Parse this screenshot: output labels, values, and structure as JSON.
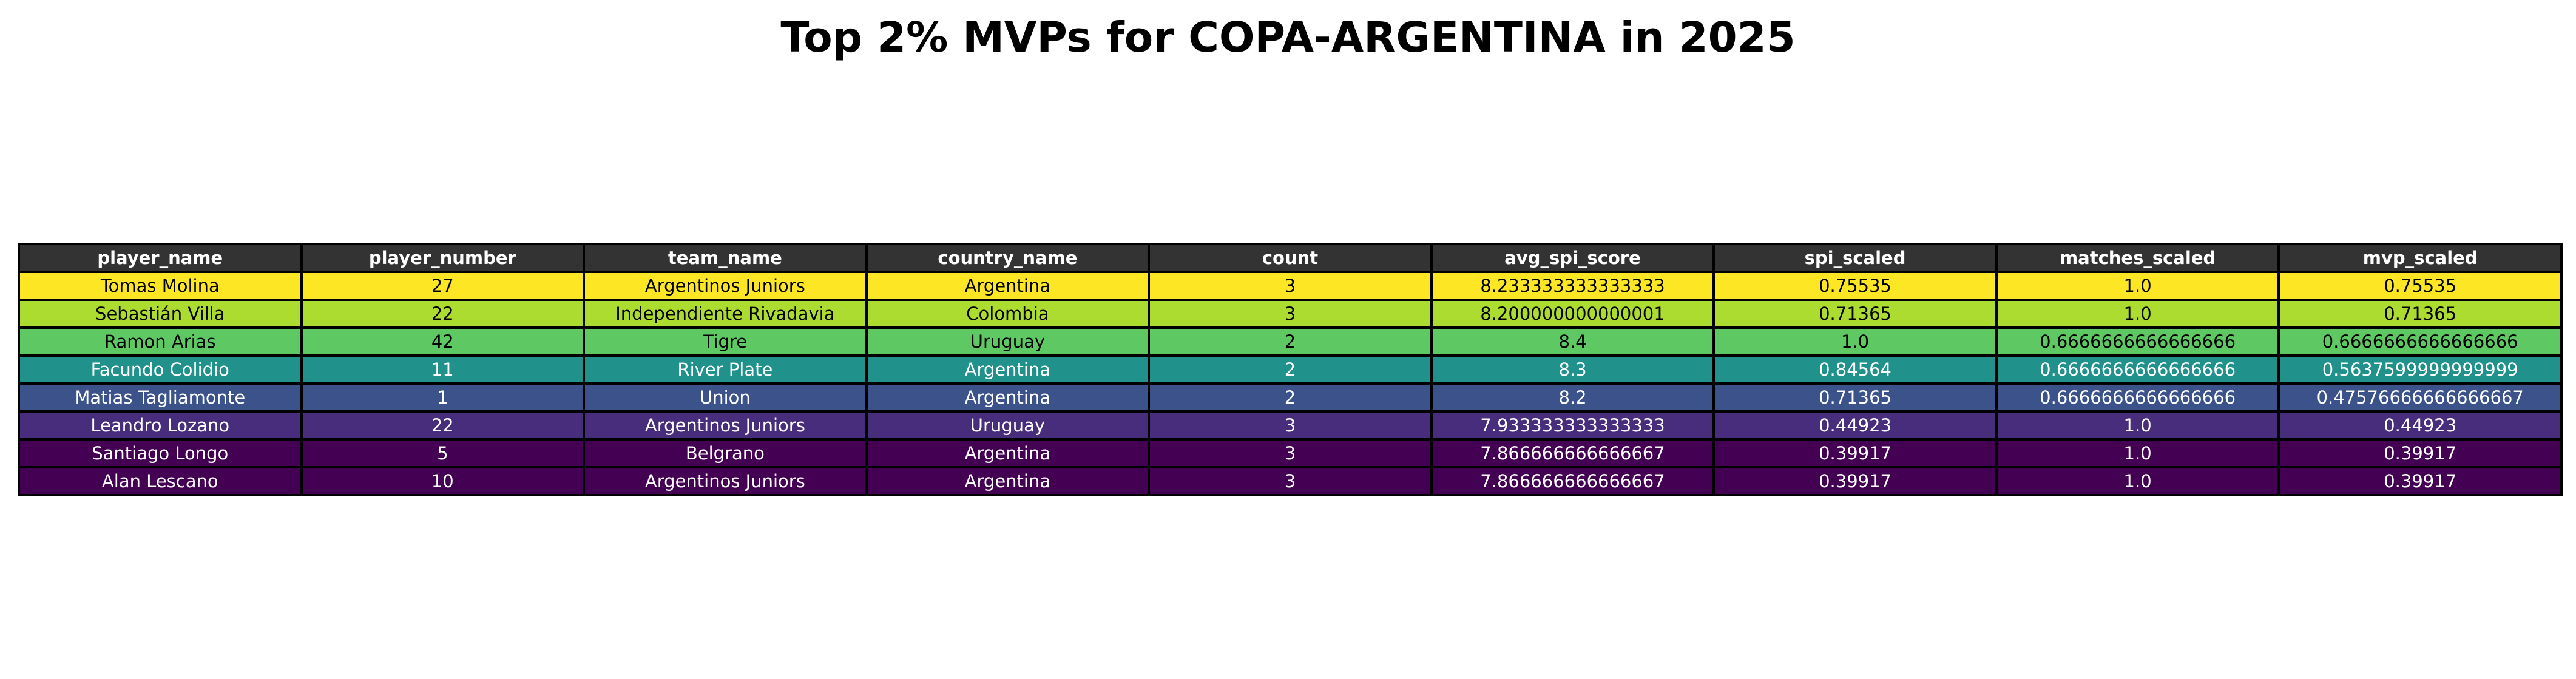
{
  "chart_data": {
    "type": "table",
    "title": "Top 2% MVPs for COPA-ARGENTINA in 2025",
    "columns": [
      "player_name",
      "player_number",
      "team_name",
      "country_name",
      "count",
      "avg_spi_score",
      "spi_scaled",
      "matches_scaled",
      "mvp_scaled"
    ],
    "header_color": "#333333",
    "header_text_color": "#ffffff",
    "rows": [
      {
        "cells": [
          "Tomas Molina",
          "27",
          "Argentinos Juniors",
          "Argentina",
          "3",
          "8.233333333333333",
          "0.75535",
          "1.0",
          "0.75535"
        ],
        "bg": "#fde725",
        "fg": "#000000"
      },
      {
        "cells": [
          "Sebastián Villa",
          "22",
          "Independiente Rivadavia",
          "Colombia",
          "3",
          "8.200000000000001",
          "0.71365",
          "1.0",
          "0.71365"
        ],
        "bg": "#addc30",
        "fg": "#000000"
      },
      {
        "cells": [
          "Ramon Arias",
          "42",
          "Tigre",
          "Uruguay",
          "2",
          "8.4",
          "1.0",
          "0.6666666666666666",
          "0.6666666666666666"
        ],
        "bg": "#5ec962",
        "fg": "#000000"
      },
      {
        "cells": [
          "Facundo Colidio",
          "11",
          "River Plate",
          "Argentina",
          "2",
          "8.3",
          "0.84564",
          "0.6666666666666666",
          "0.5637599999999999"
        ],
        "bg": "#21918c",
        "fg": "#ffffff"
      },
      {
        "cells": [
          "Matias Tagliamonte",
          "1",
          "Union",
          "Argentina",
          "2",
          "8.2",
          "0.71365",
          "0.6666666666666666",
          "0.47576666666666667"
        ],
        "bg": "#3b528b",
        "fg": "#ffffff"
      },
      {
        "cells": [
          "Leandro Lozano",
          "22",
          "Argentinos Juniors",
          "Uruguay",
          "3",
          "7.933333333333333",
          "0.44923",
          "1.0",
          "0.44923"
        ],
        "bg": "#472d7b",
        "fg": "#ffffff"
      },
      {
        "cells": [
          "Santiago Longo",
          "5",
          "Belgrano",
          "Argentina",
          "3",
          "7.866666666666667",
          "0.39917",
          "1.0",
          "0.39917"
        ],
        "bg": "#440154",
        "fg": "#ffffff"
      },
      {
        "cells": [
          "Alan Lescano",
          "10",
          "Argentinos Juniors",
          "Argentina",
          "3",
          "7.866666666666667",
          "0.39917",
          "1.0",
          "0.39917"
        ],
        "bg": "#440154",
        "fg": "#ffffff"
      }
    ]
  }
}
